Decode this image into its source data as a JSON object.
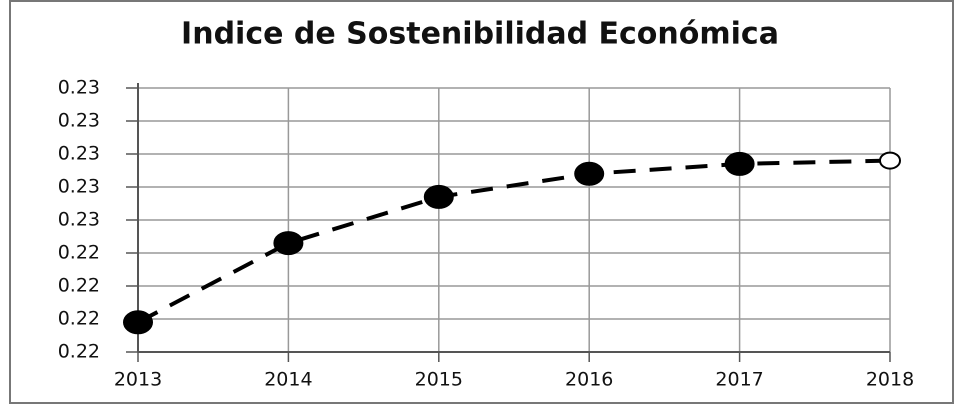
{
  "chart_data": {
    "type": "line",
    "title": "Indice de Sostenibilidad Económica",
    "categories": [
      "2013",
      "2014",
      "2015",
      "2016",
      "2017",
      "2018"
    ],
    "series": [
      {
        "name": "Indice",
        "color": "#000000",
        "values": [
          0.2219,
          0.2243,
          0.2257,
          0.2264,
          0.2267,
          0.2268
        ],
        "marker_fill": [
          "#000000",
          "#000000",
          "#000000",
          "#000000",
          "#000000",
          "#ffffff"
        ]
      }
    ],
    "ylim": [
      0.221,
      0.229
    ],
    "yticks": [
      {
        "value": 0.221,
        "label": "0.22"
      },
      {
        "value": 0.222,
        "label": "0.22"
      },
      {
        "value": 0.223,
        "label": "0.22"
      },
      {
        "value": 0.224,
        "label": "0.22"
      },
      {
        "value": 0.225,
        "label": "0.23"
      },
      {
        "value": 0.226,
        "label": "0.23"
      },
      {
        "value": 0.227,
        "label": "0.23"
      },
      {
        "value": 0.228,
        "label": "0.23"
      },
      {
        "value": 0.229,
        "label": "0.23"
      }
    ],
    "grid": true
  }
}
